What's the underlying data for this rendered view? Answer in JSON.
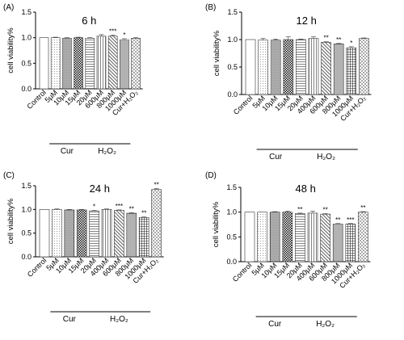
{
  "categories": [
    "Control",
    "5μM",
    "10μM",
    "15μM",
    "20μM",
    "400μM",
    "600μM",
    "800μM",
    "1000μM",
    "Cur+H₂O₂"
  ],
  "patterns": [
    "white",
    "dots-fine",
    "dots-dense",
    "checker-dense",
    "hlines",
    "vlines",
    "diag-dense",
    "hlines-dense",
    "grid",
    "diag-cross"
  ],
  "groups": [
    {
      "label": "Cur",
      "from": 1,
      "to": 3
    },
    {
      "label": "H₂O₂",
      "from": 4,
      "to": 8
    }
  ],
  "chart_data": [
    {
      "type": "bar",
      "panel": "(A)",
      "title": "6 h",
      "ylabel": "cell viability%",
      "ylim": [
        0,
        1.5
      ],
      "yticks": [
        "0.0",
        "0.5",
        "1.0",
        "1.5"
      ],
      "categories": [
        "Control",
        "5μM",
        "10μM",
        "15μM",
        "20μM",
        "600μM",
        "800μM",
        "1000μM",
        "Cur+H₂O₂"
      ],
      "values": [
        1.0,
        1.0,
        0.99,
        1.0,
        0.99,
        1.03,
        1.03,
        0.96,
        0.99
      ],
      "errors": [
        0.0,
        0.01,
        0.01,
        0.01,
        0.01,
        0.03,
        0.02,
        0.02,
        0.01
      ],
      "significance": [
        "",
        "",
        "",
        "",
        "",
        "",
        "***",
        "*",
        ""
      ],
      "patterns": [
        "white",
        "dots-fine",
        "dots-dense",
        "checker-dense",
        "hlines",
        "vlines",
        "diag-dense",
        "hlines-dense",
        "diag-cross"
      ],
      "groups": [
        {
          "label": "Cur",
          "from": 1,
          "to": 3
        },
        {
          "label": "H₂O₂",
          "from": 4,
          "to": 7
        }
      ]
    },
    {
      "type": "bar",
      "panel": "(B)",
      "title": "12 h",
      "ylabel": "cell viability%",
      "ylim": [
        0,
        1.5
      ],
      "yticks": [
        "0.0",
        "0.5",
        "1.0",
        "1.5"
      ],
      "values": [
        1.0,
        0.99,
        0.99,
        1.0,
        1.0,
        1.02,
        0.95,
        0.92,
        0.85,
        1.02
      ],
      "errors": [
        0.0,
        0.03,
        0.02,
        0.05,
        0.01,
        0.03,
        0.01,
        0.01,
        0.02,
        0.01
      ],
      "significance": [
        "",
        "",
        "",
        "",
        "",
        "",
        "**",
        "**",
        "*",
        ""
      ]
    },
    {
      "type": "bar",
      "panel": "(C)",
      "title": "24 h",
      "ylabel": "cell viability%",
      "ylim": [
        0,
        1.5
      ],
      "yticks": [
        "0.0",
        "0.5",
        "1.0",
        "1.5"
      ],
      "values": [
        1.0,
        1.0,
        0.99,
        0.99,
        0.97,
        1.0,
        0.98,
        0.92,
        0.83,
        1.42
      ],
      "errors": [
        0.0,
        0.01,
        0.01,
        0.01,
        0.01,
        0.01,
        0.01,
        0.01,
        0.01,
        0.02
      ],
      "significance": [
        "",
        "",
        "",
        "",
        "*",
        "",
        "***",
        "**",
        "**",
        "**"
      ]
    },
    {
      "type": "bar",
      "panel": "(D)",
      "title": "48 h",
      "ylabel": "cell viability%",
      "ylim": [
        0,
        1.5
      ],
      "yticks": [
        "0.0",
        "0.5",
        "1.0",
        "1.5"
      ],
      "values": [
        1.0,
        1.0,
        1.0,
        1.0,
        0.97,
        0.98,
        0.96,
        0.76,
        0.76,
        1.0
      ],
      "errors": [
        0.0,
        0.0,
        0.01,
        0.02,
        0.01,
        0.04,
        0.01,
        0.01,
        0.01,
        0.01
      ],
      "significance": [
        "",
        "",
        "",
        "",
        "**",
        "",
        "**",
        "**",
        "***",
        "**"
      ]
    }
  ]
}
